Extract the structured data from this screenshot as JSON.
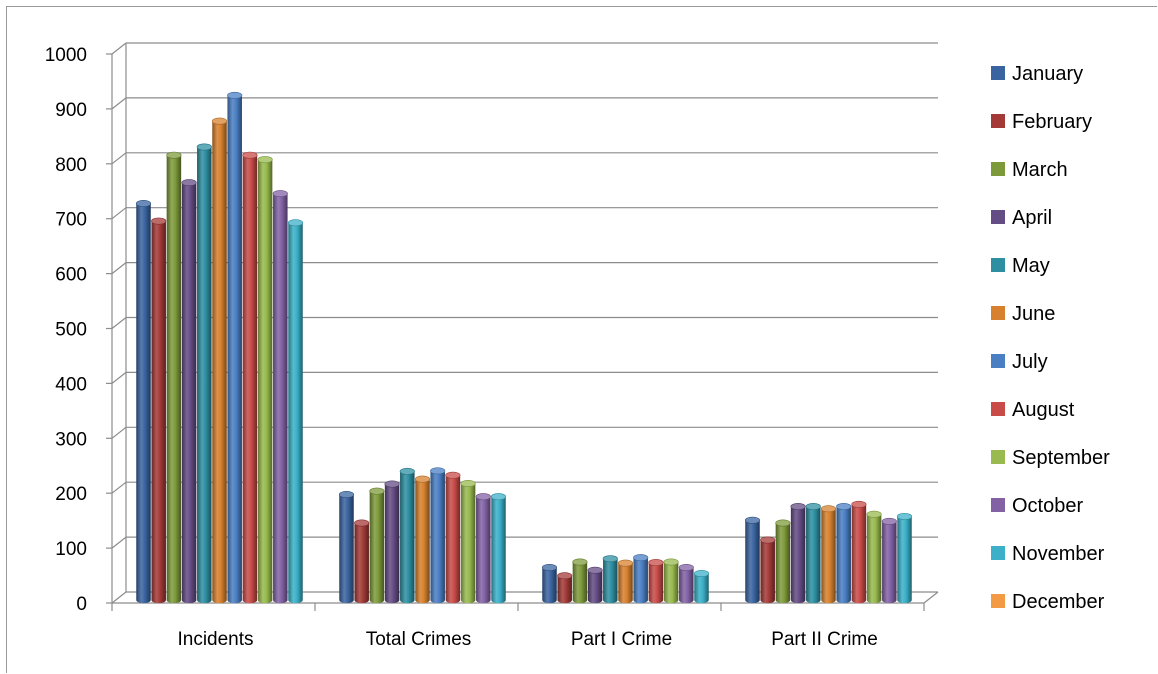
{
  "chart_data": {
    "type": "bar",
    "style": "3d-cylinder",
    "categories": [
      "Incidents",
      "Total Crimes",
      "Part I Crime",
      "Part II Crime"
    ],
    "ylim": [
      0,
      1000
    ],
    "yticks": [
      "0",
      "100",
      "200",
      "300",
      "400",
      "500",
      "600",
      "700",
      "800",
      "900",
      "1000"
    ],
    "grid": true,
    "legend_position": "right",
    "series": [
      {
        "name": "January",
        "color": "#3A64A0",
        "values": [
          710,
          180,
          47,
          133
        ]
      },
      {
        "name": "February",
        "color": "#A33A38",
        "values": [
          678,
          128,
          32,
          97
        ]
      },
      {
        "name": "March",
        "color": "#7D9A3B",
        "values": [
          798,
          186,
          57,
          128
        ]
      },
      {
        "name": "April",
        "color": "#644C84",
        "values": [
          748,
          199,
          42,
          158
        ]
      },
      {
        "name": "May",
        "color": "#2E8FA2",
        "values": [
          813,
          222,
          63,
          158
        ]
      },
      {
        "name": "June",
        "color": "#D7812E",
        "values": [
          860,
          208,
          55,
          154
        ]
      },
      {
        "name": "July",
        "color": "#4A7FC4",
        "values": [
          907,
          223,
          65,
          158
        ]
      },
      {
        "name": "August",
        "color": "#C84B48",
        "values": [
          798,
          215,
          56,
          162
        ]
      },
      {
        "name": "September",
        "color": "#98BA4E",
        "values": [
          790,
          200,
          57,
          144
        ]
      },
      {
        "name": "October",
        "color": "#8262A5",
        "values": [
          728,
          176,
          47,
          131
        ]
      },
      {
        "name": "November",
        "color": "#3BB0C8",
        "values": [
          675,
          176,
          36,
          140
        ]
      },
      {
        "name": "December",
        "color": "#F39A45",
        "values": [
          null,
          null,
          null,
          null
        ]
      }
    ]
  }
}
